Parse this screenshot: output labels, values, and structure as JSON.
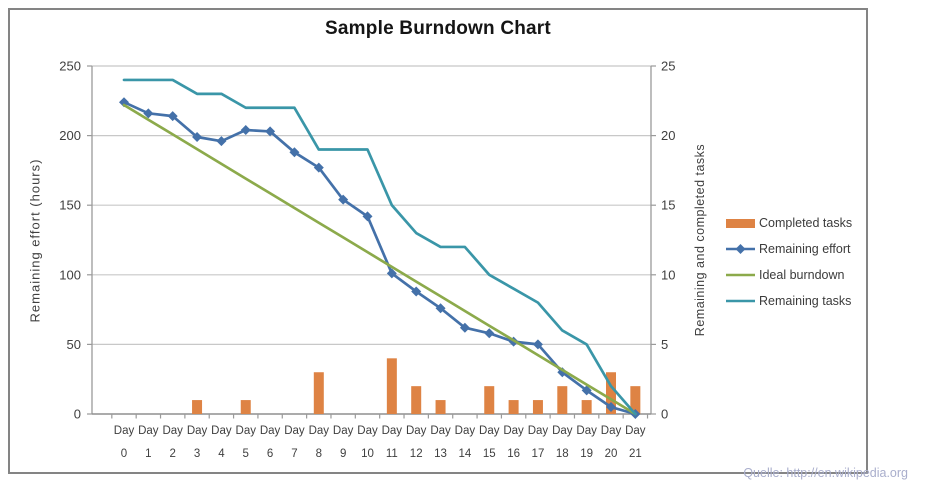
{
  "title": "Sample Burndown Chart",
  "source_note": "Quelle: http://en.wikipedia.org",
  "colors": {
    "bars_orange": "#DE8344",
    "effort_blue": "#4471A9",
    "ideal_green": "#8CAA4B",
    "tasks_teal": "#3A96A8",
    "gridline": "#C8C8C8",
    "axis_line": "#9A9A9A",
    "text": "#3F3F3F",
    "frame_border": "#848484",
    "source_text": "#A9AECC"
  },
  "chart_data": {
    "type": "combo",
    "title": "Sample Burndown Chart",
    "categories": [
      "Day 0",
      "Day 1",
      "Day 2",
      "Day 3",
      "Day 4",
      "Day 5",
      "Day 6",
      "Day 7",
      "Day 8",
      "Day 9",
      "Day 10",
      "Day 11",
      "Day 12",
      "Day 13",
      "Day 14",
      "Day 15",
      "Day 16",
      "Day 17",
      "Day 18",
      "Day 19",
      "Day 20",
      "Day 21"
    ],
    "left_ylabel": "Remaining effort (hours)",
    "left_ylim": [
      0,
      250
    ],
    "left_ticks": [
      0,
      50,
      100,
      150,
      200,
      250
    ],
    "right_ylabel": "Remaining and  completed tasks",
    "right_ylim": [
      0,
      25
    ],
    "right_ticks": [
      0,
      5,
      10,
      15,
      20,
      25
    ],
    "grid": true,
    "legend_position": "right",
    "series": [
      {
        "name": "Completed tasks",
        "type": "bar",
        "axis": "right",
        "color": "#DE8344",
        "values": [
          0,
          0,
          0,
          1,
          0,
          1,
          0,
          0,
          3,
          0,
          0,
          4,
          2,
          1,
          0,
          2,
          1,
          1,
          2,
          1,
          3,
          2
        ]
      },
      {
        "name": "Remaining effort",
        "type": "line",
        "marker": "diamond",
        "axis": "left",
        "color": "#4471A9",
        "values": [
          224,
          216,
          214,
          199,
          196,
          204,
          203,
          188,
          177,
          154,
          142,
          101,
          88,
          76,
          62,
          58,
          52,
          50,
          30,
          17,
          5,
          0
        ]
      },
      {
        "name": "Ideal burndown",
        "type": "line",
        "marker": "none",
        "axis": "left",
        "color": "#8CAA4B",
        "values": [
          222,
          211.4,
          200.9,
          190.3,
          179.7,
          169.1,
          158.6,
          148,
          137.4,
          126.9,
          116.3,
          105.7,
          95.1,
          84.6,
          74,
          63.4,
          52.9,
          42.3,
          31.7,
          21.1,
          10.6,
          0
        ]
      },
      {
        "name": "Remaining tasks",
        "type": "line",
        "marker": "none",
        "axis": "right",
        "color": "#3A96A8",
        "values": [
          24,
          24,
          24,
          23,
          23,
          22,
          22,
          22,
          19,
          19,
          19,
          15,
          13,
          12,
          12,
          10,
          9,
          8,
          6,
          5,
          2,
          0
        ]
      }
    ]
  }
}
